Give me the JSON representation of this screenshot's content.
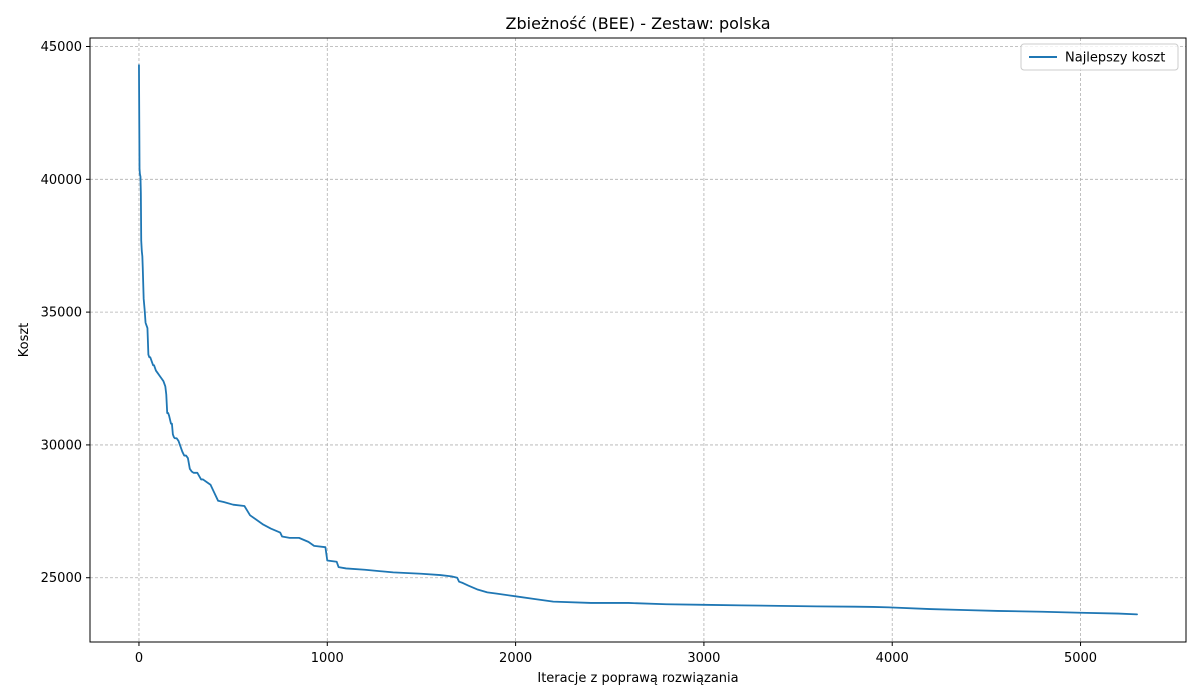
{
  "chart_data": {
    "type": "line",
    "title": "Zbieżność (BEE) - Zestaw: polska",
    "xlabel": "Iteracje z poprawą rozwiązania",
    "ylabel": "Koszt",
    "xlim": [
      -260,
      5560
    ],
    "ylim": [
      22580,
      45320
    ],
    "xticks": [
      0,
      1000,
      2000,
      3000,
      4000,
      5000
    ],
    "yticks": [
      25000,
      30000,
      35000,
      40000,
      45000
    ],
    "grid": true,
    "legend": "top-right",
    "line_color": "#1f77b4",
    "series": [
      {
        "name": "Najlepszy koszt",
        "x": [
          0,
          3,
          5,
          8,
          10,
          12,
          15,
          18,
          20,
          25,
          30,
          35,
          40,
          45,
          50,
          55,
          60,
          70,
          75,
          80,
          90,
          100,
          110,
          120,
          130,
          140,
          145,
          150,
          155,
          160,
          170,
          175,
          180,
          185,
          190,
          200,
          210,
          230,
          240,
          250,
          260,
          270,
          280,
          290,
          310,
          330,
          340,
          360,
          380,
          400,
          420,
          450,
          500,
          560,
          590,
          620,
          660,
          700,
          750,
          760,
          800,
          850,
          900,
          930,
          990,
          1000,
          1050,
          1060,
          1100,
          1200,
          1350,
          1500,
          1600,
          1660,
          1690,
          1700,
          1720,
          1750,
          1800,
          1850,
          1900,
          2000,
          2100,
          2200,
          2400,
          2600,
          2800,
          3000,
          3200,
          3400,
          3600,
          3800,
          3900,
          4000,
          4200,
          4400,
          4560,
          4800,
          5000,
          5200,
          5300
        ],
        "y": [
          44300,
          40400,
          40200,
          40100,
          39500,
          37700,
          37300,
          37100,
          36700,
          35500,
          35100,
          34600,
          34500,
          34400,
          33400,
          33300,
          33300,
          33100,
          33000,
          33000,
          32800,
          32700,
          32600,
          32500,
          32400,
          32200,
          31900,
          31200,
          31200,
          31100,
          30800,
          30800,
          30400,
          30300,
          30250,
          30250,
          30150,
          29750,
          29600,
          29600,
          29500,
          29100,
          29000,
          28950,
          28950,
          28700,
          28700,
          28600,
          28500,
          28200,
          27900,
          27850,
          27750,
          27700,
          27350,
          27200,
          27000,
          26850,
          26700,
          26550,
          26500,
          26500,
          26350,
          26200,
          26150,
          25650,
          25600,
          25400,
          25350,
          25300,
          25200,
          25150,
          25100,
          25050,
          25000,
          24850,
          24800,
          24700,
          24550,
          24450,
          24400,
          24300,
          24200,
          24100,
          24050,
          24050,
          24000,
          23980,
          23960,
          23940,
          23920,
          23910,
          23900,
          23880,
          23820,
          23780,
          23750,
          23720,
          23680,
          23650,
          23620
        ]
      }
    ]
  }
}
